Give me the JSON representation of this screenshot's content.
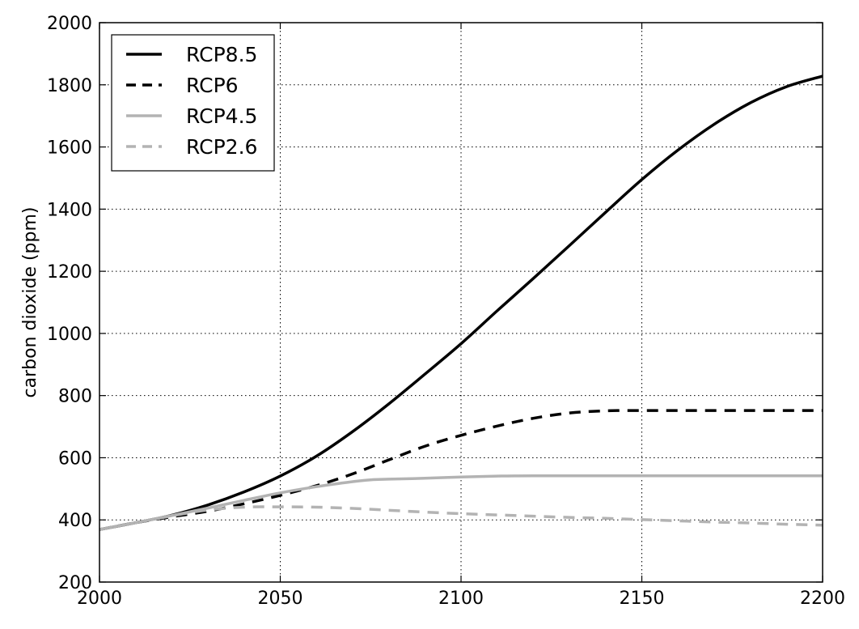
{
  "chart_data": {
    "type": "line",
    "title": "",
    "xlabel": "",
    "ylabel": "carbon dioxide (ppm)",
    "xlim": [
      2000,
      2200
    ],
    "ylim": [
      200,
      2000
    ],
    "xticks": [
      2000,
      2050,
      2100,
      2150,
      2200
    ],
    "yticks": [
      200,
      400,
      600,
      800,
      1000,
      1200,
      1400,
      1600,
      1800,
      2000
    ],
    "grid": true,
    "legend_position": "top-left",
    "series": [
      {
        "name": "RCP8.5",
        "color": "#000000",
        "line_style": "solid",
        "x": [
          2000,
          2010,
          2020,
          2030,
          2040,
          2050,
          2060,
          2070,
          2080,
          2090,
          2100,
          2110,
          2120,
          2130,
          2140,
          2150,
          2160,
          2170,
          2180,
          2190,
          2200
        ],
        "y": [
          369,
          391,
          415,
          448,
          490,
          541,
          605,
          684,
          773,
          869,
          967,
          1073,
          1177,
          1283,
          1390,
          1495,
          1590,
          1673,
          1742,
          1794,
          1828
        ]
      },
      {
        "name": "RCP6",
        "color": "#000000",
        "line_style": "dashed",
        "x": [
          2000,
          2010,
          2020,
          2030,
          2040,
          2050,
          2060,
          2070,
          2080,
          2090,
          2100,
          2110,
          2120,
          2130,
          2140,
          2150,
          2160,
          2180,
          2200
        ],
        "y": [
          369,
          391,
          410,
          428,
          452,
          479,
          510,
          548,
          593,
          637,
          672,
          702,
          727,
          744,
          751,
          752,
          752,
          752,
          752
        ]
      },
      {
        "name": "RCP4.5",
        "color": "#b3b3b3",
        "line_style": "solid",
        "x": [
          2000,
          2010,
          2020,
          2030,
          2040,
          2050,
          2060,
          2070,
          2075,
          2080,
          2090,
          2100,
          2110,
          2120,
          2150,
          2200
        ],
        "y": [
          369,
          391,
          414,
          438,
          463,
          487,
          507,
          523,
          529,
          531,
          534,
          538,
          541,
          542,
          542,
          542
        ]
      },
      {
        "name": "RCP2.6",
        "color": "#b3b3b3",
        "line_style": "dashed",
        "x": [
          2000,
          2010,
          2020,
          2030,
          2040,
          2050,
          2060,
          2070,
          2080,
          2090,
          2100,
          2110,
          2120,
          2130,
          2140,
          2150,
          2160,
          2170,
          2180,
          2190,
          2200
        ],
        "y": [
          369,
          391,
          413,
          432,
          441,
          442,
          441,
          437,
          431,
          425,
          420,
          416,
          412,
          408,
          405,
          401,
          397,
          393,
          390,
          386,
          383
        ]
      }
    ]
  }
}
